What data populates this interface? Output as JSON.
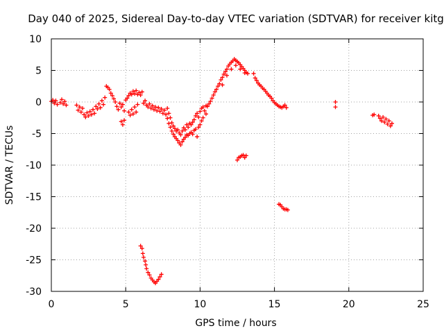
{
  "chart_data": {
    "type": "scatter",
    "title": "Day 040 of 2025, Sidereal Day-to-day VTEC variation (SDTVAR) for receiver kitg",
    "xlabel": "GPS time / hours",
    "ylabel": "SDTVAR / TECUs",
    "xlim": [
      0,
      25
    ],
    "ylim": [
      -30,
      10
    ],
    "xticks": [
      "0",
      "5",
      "10",
      "15",
      "20",
      "25"
    ],
    "yticks": [
      "10",
      "5",
      "0",
      "-5",
      "-10",
      "-15",
      "-20",
      "-25",
      "-30"
    ],
    "grid": true,
    "marker": "+",
    "series_color": "#ff0000",
    "series": [
      {
        "name": "kitg",
        "points": [
          [
            0.0,
            0.1
          ],
          [
            0.1,
            0.3
          ],
          [
            0.2,
            -0.2
          ],
          [
            0.3,
            0.2
          ],
          [
            0.4,
            -0.4
          ],
          [
            0.6,
            -0.1
          ],
          [
            0.7,
            0.4
          ],
          [
            0.8,
            -0.3
          ],
          [
            0.9,
            0.1
          ],
          [
            1.0,
            -0.5
          ],
          [
            1.7,
            -0.5
          ],
          [
            1.8,
            -1.3
          ],
          [
            1.9,
            -0.8
          ],
          [
            2.0,
            -1.6
          ],
          [
            2.1,
            -1.0
          ],
          [
            2.2,
            -2.0
          ],
          [
            2.3,
            -2.4
          ],
          [
            2.4,
            -1.7
          ],
          [
            2.5,
            -2.2
          ],
          [
            2.6,
            -1.5
          ],
          [
            2.7,
            -2.0
          ],
          [
            2.8,
            -1.2
          ],
          [
            2.9,
            -1.8
          ],
          [
            3.0,
            -0.7
          ],
          [
            3.1,
            -1.1
          ],
          [
            3.2,
            -0.3
          ],
          [
            3.3,
            -0.9
          ],
          [
            3.4,
            0.2
          ],
          [
            3.5,
            -0.4
          ],
          [
            3.6,
            0.7
          ],
          [
            3.7,
            2.5
          ],
          [
            3.8,
            2.3
          ],
          [
            3.9,
            2.0
          ],
          [
            4.0,
            1.4
          ],
          [
            4.1,
            1.0
          ],
          [
            4.2,
            0.5
          ],
          [
            4.3,
            0.0
          ],
          [
            4.4,
            -0.7
          ],
          [
            4.5,
            -1.2
          ],
          [
            4.6,
            -0.2
          ],
          [
            4.7,
            -0.8
          ],
          [
            4.8,
            -0.4
          ],
          [
            4.9,
            -1.4
          ],
          [
            5.0,
            0.3
          ],
          [
            5.1,
            0.6
          ],
          [
            5.2,
            1.0
          ],
          [
            5.3,
            1.4
          ],
          [
            5.4,
            1.2
          ],
          [
            5.5,
            1.7
          ],
          [
            5.6,
            1.3
          ],
          [
            5.7,
            1.8
          ],
          [
            5.8,
            1.2
          ],
          [
            5.9,
            1.5
          ],
          [
            6.0,
            1.1
          ],
          [
            6.1,
            1.6
          ],
          [
            4.7,
            -3.1
          ],
          [
            4.8,
            -3.6
          ],
          [
            4.9,
            -2.9
          ],
          [
            5.2,
            -1.6
          ],
          [
            5.3,
            -2.1
          ],
          [
            5.4,
            -1.2
          ],
          [
            5.5,
            -1.9
          ],
          [
            5.6,
            -0.8
          ],
          [
            5.7,
            -1.6
          ],
          [
            5.8,
            -0.4
          ],
          [
            6.2,
            -0.2
          ],
          [
            6.3,
            0.2
          ],
          [
            6.4,
            -0.5
          ],
          [
            6.5,
            -0.8
          ],
          [
            6.6,
            -0.3
          ],
          [
            6.7,
            -1.0
          ],
          [
            6.8,
            -0.6
          ],
          [
            6.9,
            -1.2
          ],
          [
            7.0,
            -0.8
          ],
          [
            7.1,
            -1.4
          ],
          [
            7.2,
            -0.9
          ],
          [
            7.3,
            -1.5
          ],
          [
            7.4,
            -1.1
          ],
          [
            7.5,
            -1.8
          ],
          [
            7.6,
            -1.3
          ],
          [
            7.7,
            -2.0
          ],
          [
            7.8,
            -1.0
          ],
          [
            7.8,
            -2.6
          ],
          [
            7.9,
            -1.8
          ],
          [
            7.9,
            -3.4
          ],
          [
            8.0,
            -2.5
          ],
          [
            8.0,
            -4.0
          ],
          [
            8.1,
            -3.3
          ],
          [
            8.1,
            -4.6
          ],
          [
            8.2,
            -3.8
          ],
          [
            8.2,
            -5.1
          ],
          [
            8.3,
            -4.2
          ],
          [
            8.3,
            -5.5
          ],
          [
            8.4,
            -4.6
          ],
          [
            8.4,
            -5.8
          ],
          [
            8.5,
            -4.4
          ],
          [
            8.5,
            -6.1
          ],
          [
            8.6,
            -4.9
          ],
          [
            8.6,
            -6.5
          ],
          [
            8.7,
            -5.2
          ],
          [
            8.7,
            -6.8
          ],
          [
            8.8,
            -4.6
          ],
          [
            8.8,
            -6.3
          ],
          [
            8.9,
            -4.1
          ],
          [
            8.9,
            -5.9
          ],
          [
            9.0,
            -4.4
          ],
          [
            9.0,
            -5.6
          ],
          [
            9.1,
            -3.6
          ],
          [
            9.1,
            -5.2
          ],
          [
            9.2,
            -4.0
          ],
          [
            9.2,
            -5.3
          ],
          [
            9.3,
            -3.4
          ],
          [
            9.3,
            -5.0
          ],
          [
            9.4,
            -3.6
          ],
          [
            9.4,
            -4.8
          ],
          [
            9.5,
            -3.2
          ],
          [
            9.5,
            -5.1
          ],
          [
            9.6,
            -2.8
          ],
          [
            9.6,
            -4.5
          ],
          [
            9.7,
            -2.2
          ],
          [
            9.7,
            -4.3
          ],
          [
            9.8,
            -1.8
          ],
          [
            9.8,
            -5.5
          ],
          [
            9.9,
            -2.4
          ],
          [
            9.9,
            -4.0
          ],
          [
            10.0,
            -1.5
          ],
          [
            10.0,
            -3.6
          ],
          [
            10.1,
            -1.0
          ],
          [
            10.1,
            -3.0
          ],
          [
            10.2,
            -0.8
          ],
          [
            10.2,
            -2.5
          ],
          [
            10.3,
            -1.4
          ],
          [
            10.4,
            -0.6
          ],
          [
            10.4,
            -1.9
          ],
          [
            10.5,
            -0.7
          ],
          [
            10.6,
            -0.3
          ],
          [
            10.7,
            0.1
          ],
          [
            10.8,
            0.6
          ],
          [
            10.9,
            1.1
          ],
          [
            11.0,
            1.6
          ],
          [
            11.1,
            2.0
          ],
          [
            11.2,
            2.5
          ],
          [
            11.3,
            2.9
          ],
          [
            11.4,
            3.5
          ],
          [
            11.5,
            3.9
          ],
          [
            11.6,
            4.4
          ],
          [
            11.7,
            4.8
          ],
          [
            11.8,
            5.2
          ],
          [
            11.9,
            5.7
          ],
          [
            12.0,
            6.0
          ],
          [
            12.1,
            6.3
          ],
          [
            12.2,
            6.5
          ],
          [
            12.3,
            6.8
          ],
          [
            12.4,
            6.6
          ],
          [
            12.5,
            6.4
          ],
          [
            12.6,
            6.2
          ],
          [
            12.7,
            5.9
          ],
          [
            12.8,
            5.6
          ],
          [
            12.9,
            5.3
          ],
          [
            13.0,
            5.0
          ],
          [
            13.1,
            4.7
          ],
          [
            13.2,
            4.5
          ],
          [
            11.5,
            2.7
          ],
          [
            11.8,
            4.2
          ],
          [
            12.1,
            5.2
          ],
          [
            12.4,
            5.8
          ],
          [
            12.7,
            5.2
          ],
          [
            13.0,
            4.6
          ],
          [
            13.6,
            4.5
          ],
          [
            13.7,
            3.8
          ],
          [
            13.8,
            3.4
          ],
          [
            13.9,
            3.0
          ],
          [
            14.0,
            2.7
          ],
          [
            14.1,
            2.5
          ],
          [
            14.2,
            2.2
          ],
          [
            14.3,
            2.0
          ],
          [
            14.4,
            1.7
          ],
          [
            14.5,
            1.4
          ],
          [
            14.6,
            1.1
          ],
          [
            14.7,
            0.9
          ],
          [
            14.8,
            0.6
          ],
          [
            14.9,
            0.2
          ],
          [
            15.0,
            -0.1
          ],
          [
            15.1,
            -0.3
          ],
          [
            15.2,
            -0.5
          ],
          [
            15.3,
            -0.7
          ],
          [
            15.4,
            -0.8
          ],
          [
            15.5,
            -0.9
          ],
          [
            15.6,
            -0.7
          ],
          [
            15.7,
            -0.5
          ],
          [
            15.8,
            -0.9
          ],
          [
            12.5,
            -9.2
          ],
          [
            12.6,
            -8.8
          ],
          [
            12.7,
            -8.7
          ],
          [
            12.8,
            -8.5
          ],
          [
            12.9,
            -8.4
          ],
          [
            13.0,
            -8.8
          ],
          [
            13.1,
            -8.5
          ],
          [
            15.3,
            -16.2
          ],
          [
            15.4,
            -16.3
          ],
          [
            15.5,
            -16.6
          ],
          [
            15.6,
            -16.9
          ],
          [
            15.7,
            -17.0
          ],
          [
            15.8,
            -17.0
          ],
          [
            15.9,
            -17.1
          ],
          [
            6.0,
            -22.8
          ],
          [
            6.1,
            -23.2
          ],
          [
            6.15,
            -24.0
          ],
          [
            6.2,
            -24.6
          ],
          [
            6.3,
            -25.2
          ],
          [
            6.35,
            -25.8
          ],
          [
            6.4,
            -26.4
          ],
          [
            6.5,
            -27.0
          ],
          [
            6.6,
            -27.4
          ],
          [
            6.7,
            -27.9
          ],
          [
            6.8,
            -28.2
          ],
          [
            6.9,
            -28.5
          ],
          [
            7.0,
            -28.7
          ],
          [
            7.1,
            -28.4
          ],
          [
            7.2,
            -28.1
          ],
          [
            7.3,
            -27.7
          ],
          [
            7.4,
            -27.3
          ],
          [
            19.1,
            0.0
          ],
          [
            19.1,
            -0.8
          ],
          [
            21.6,
            -2.1
          ],
          [
            21.7,
            -2.0
          ],
          [
            22.0,
            -2.2
          ],
          [
            22.1,
            -2.6
          ],
          [
            22.2,
            -3.0
          ],
          [
            22.3,
            -2.4
          ],
          [
            22.4,
            -3.2
          ],
          [
            22.5,
            -2.7
          ],
          [
            22.6,
            -3.5
          ],
          [
            22.7,
            -3.0
          ],
          [
            22.8,
            -3.8
          ],
          [
            22.9,
            -3.4
          ]
        ]
      }
    ]
  }
}
